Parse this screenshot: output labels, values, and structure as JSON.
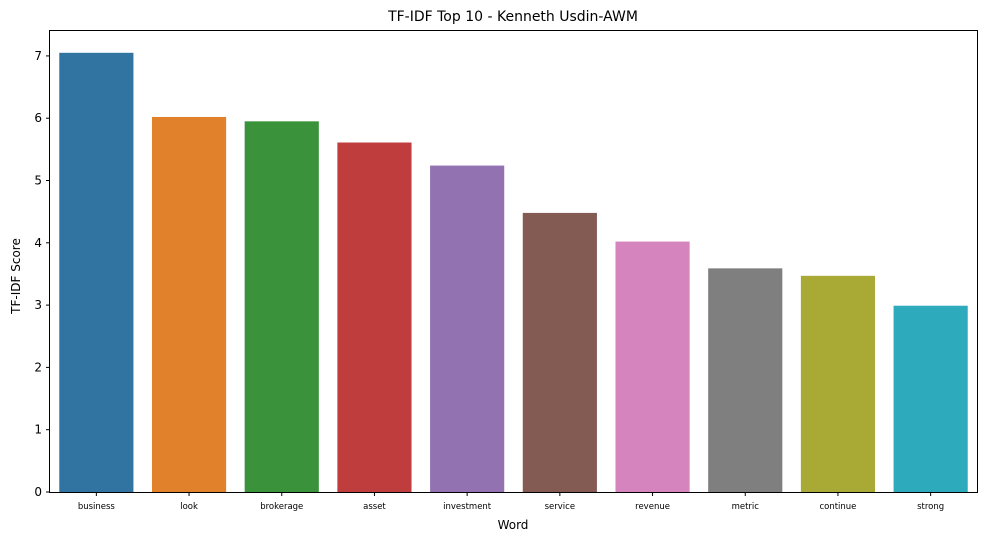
{
  "chart_data": {
    "type": "bar",
    "title": "TF-IDF Top 10 - Kenneth Usdin-AWM",
    "xlabel": "Word",
    "ylabel": "TF-IDF Score",
    "categories": [
      "business",
      "look",
      "brokerage",
      "asset",
      "investment",
      "service",
      "revenue",
      "metric",
      "continue",
      "strong"
    ],
    "values": [
      7.05,
      6.02,
      5.95,
      5.61,
      5.24,
      4.48,
      4.02,
      3.59,
      3.47,
      2.99
    ],
    "colors": [
      "#3274a1",
      "#e1812c",
      "#3a923a",
      "#c03d3e",
      "#9372b2",
      "#845b53",
      "#d684bd",
      "#7f7f7f",
      "#a9aa35",
      "#2eaabd"
    ],
    "yticks": [
      "0",
      "1",
      "2",
      "3",
      "4",
      "5",
      "6",
      "7"
    ],
    "ylim": [
      0,
      7.4
    ],
    "grid": false,
    "legend": "none"
  }
}
